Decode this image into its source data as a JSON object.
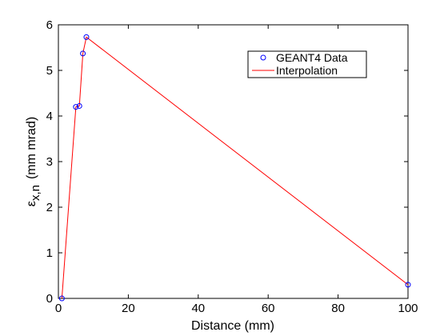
{
  "chart_data": {
    "type": "line",
    "xlabel": "Distance (mm)",
    "ylabel": {
      "symbol": "ε",
      "subscript": "x,n",
      "unit": "(mm mrad)"
    },
    "xlim": [
      0,
      100
    ],
    "ylim": [
      0,
      6
    ],
    "xticks": [
      0,
      20,
      40,
      60,
      80,
      100
    ],
    "yticks": [
      0,
      1,
      2,
      3,
      4,
      5,
      6
    ],
    "grid": false,
    "legend_placement": "top-right",
    "series": [
      {
        "name": "GEANT4 Data",
        "kind": "scatter",
        "marker": "circle",
        "color": "#0000ff",
        "x": [
          1,
          5,
          6,
          7,
          8,
          100
        ],
        "y": [
          0.0,
          4.2,
          4.22,
          5.37,
          5.73,
          0.3
        ]
      },
      {
        "name": "Interpolation",
        "kind": "line",
        "color": "#ff0000",
        "x": [
          1,
          5,
          6,
          7,
          8,
          100
        ],
        "y": [
          0.0,
          4.2,
          4.22,
          5.37,
          5.73,
          0.3
        ]
      }
    ]
  }
}
